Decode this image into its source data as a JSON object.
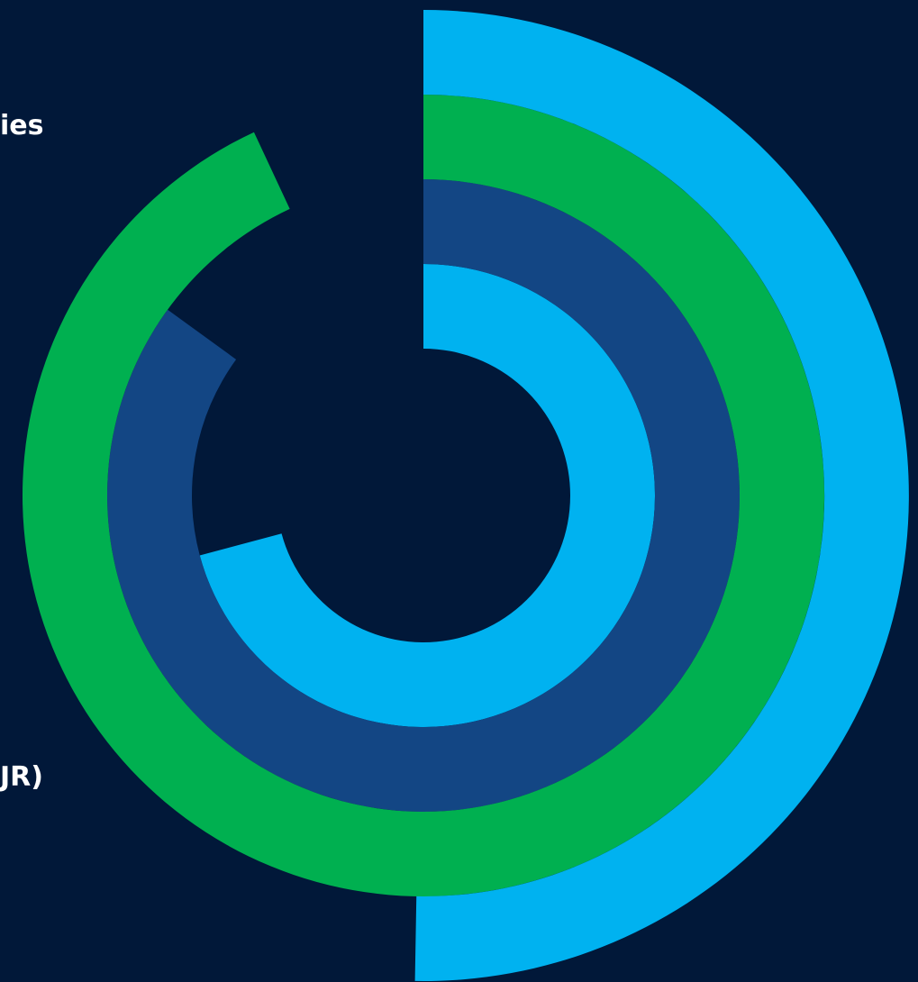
{
  "background_color": "#011839",
  "colors": {
    "light_blue": "#00b2f0",
    "green": "#00b050",
    "dark_blue": "#134684",
    "text": "#ffffff"
  },
  "visible_text": {
    "label_1": "ies",
    "label_2": "JR)"
  },
  "chart_data": {
    "type": "radial-bar",
    "title": "",
    "start_angle_deg": 0,
    "direction": "clockwise",
    "series": [
      {
        "ring": 1,
        "color": "#00b2f0",
        "sweep_deg": 255
      },
      {
        "ring": 2,
        "color": "#134684",
        "sweep_deg": 306
      },
      {
        "ring": 3,
        "color": "#00b050",
        "sweep_deg": 335
      },
      {
        "ring": 4,
        "color": "#00b2f0",
        "sweep_deg": 181
      }
    ],
    "legend": "none",
    "grid": false
  }
}
